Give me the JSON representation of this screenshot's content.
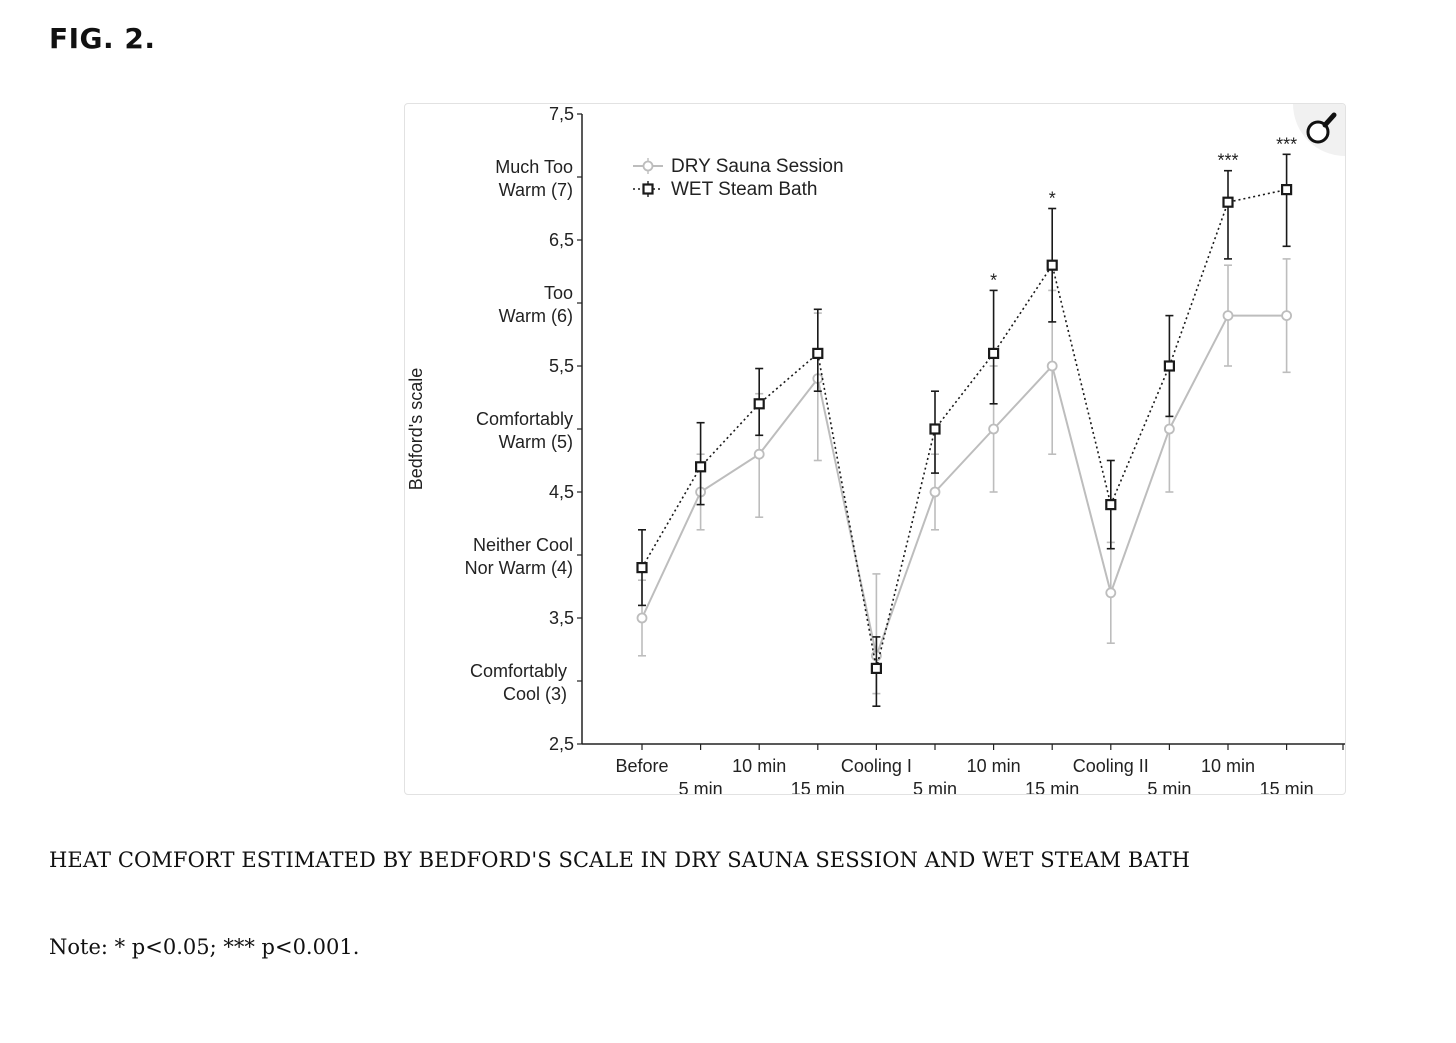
{
  "figure_label": "FIG. 2.",
  "caption": "HEAT COMFORT ESTIMATED BY BEDFORD'S SCALE IN DRY SAUNA SESSION AND WET STEAM BATH",
  "note": "Note: * p<0.05; *** p<0.001.",
  "zoom_icon": "magnifier-icon",
  "chart_data": {
    "type": "line",
    "ylabel": "Bedford's scale",
    "ylim": [
      2.5,
      7.5
    ],
    "yticks": [
      "7,5",
      "6,5",
      "5,5",
      "4,5",
      "3,5",
      "2,5"
    ],
    "ytick_values": [
      7.5,
      6.5,
      5.5,
      4.5,
      3.5,
      2.5
    ],
    "category_annotations": [
      {
        "y": 7,
        "lines": [
          "Much Too",
          "Warm (7)"
        ]
      },
      {
        "y": 6,
        "lines": [
          "Too",
          "Warm (6)"
        ]
      },
      {
        "y": 5,
        "lines": [
          "Comfortably",
          "Warm (5)"
        ]
      },
      {
        "y": 4,
        "lines": [
          "Neither Cool",
          "Nor Warm (4)"
        ]
      },
      {
        "y": 3,
        "lines": [
          "Comfortably",
          "Cool (3)"
        ]
      }
    ],
    "categories": [
      "Before",
      "5 min",
      "10 min",
      "15 min",
      "Cooling I",
      "5 min",
      "10 min",
      "15 min",
      "Cooling II",
      "5 min",
      "10 min",
      "15 min"
    ],
    "grid": false,
    "legend_position": "top-left",
    "series": [
      {
        "name": "DRY Sauna Session",
        "marker": "circle",
        "line_style": "solid",
        "color": "#bdbdbd",
        "values": [
          3.5,
          4.5,
          4.8,
          5.4,
          3.2,
          4.5,
          5.0,
          5.5,
          3.7,
          5.0,
          5.9,
          5.9
        ],
        "error_low": [
          3.2,
          4.2,
          4.3,
          4.75,
          2.9,
          4.2,
          4.5,
          4.8,
          3.3,
          4.5,
          5.5,
          5.45
        ],
        "error_high": [
          3.8,
          4.8,
          5.28,
          5.92,
          3.85,
          4.8,
          5.5,
          6.1,
          4.1,
          5.5,
          6.3,
          6.35
        ]
      },
      {
        "name": "WET Steam Bath",
        "marker": "square",
        "line_style": "dotted",
        "color": "#1a1a1a",
        "values": [
          3.9,
          4.7,
          5.2,
          5.6,
          3.1,
          5.0,
          5.6,
          6.3,
          4.4,
          5.5,
          6.8,
          6.9
        ],
        "error_low": [
          3.6,
          4.4,
          4.95,
          5.3,
          2.8,
          4.65,
          5.2,
          5.85,
          4.05,
          5.1,
          6.35,
          6.45
        ],
        "error_high": [
          4.2,
          5.05,
          5.48,
          5.95,
          3.35,
          5.3,
          6.1,
          6.75,
          4.75,
          5.9,
          7.05,
          7.18
        ]
      }
    ],
    "significance": [
      {
        "index": 6,
        "label": "*"
      },
      {
        "index": 7,
        "label": "*"
      },
      {
        "index": 10,
        "label": "***"
      },
      {
        "index": 11,
        "label": "***"
      }
    ]
  }
}
